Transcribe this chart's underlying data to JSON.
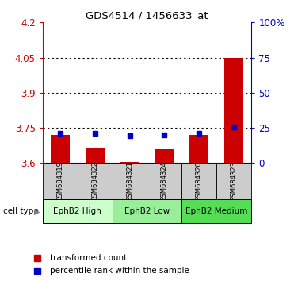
{
  "title": "GDS4514 / 1456633_at",
  "samples": [
    "GSM684319",
    "GSM684322",
    "GSM684321",
    "GSM684324",
    "GSM684320",
    "GSM684323"
  ],
  "red_values": [
    3.72,
    3.665,
    3.603,
    3.658,
    3.72,
    4.05
  ],
  "blue_values": [
    3.727,
    3.727,
    3.715,
    3.72,
    3.727,
    3.752
  ],
  "cell_types": [
    {
      "label": "EphB2 High",
      "start": 0,
      "end": 2,
      "color": "#ccffcc"
    },
    {
      "label": "EphB2 Low",
      "start": 2,
      "end": 4,
      "color": "#99ee99"
    },
    {
      "label": "EphB2 Medium",
      "start": 4,
      "end": 6,
      "color": "#55dd55"
    }
  ],
  "ymin": 3.6,
  "ymax": 4.2,
  "yticks_left": [
    3.6,
    3.75,
    3.9,
    4.05,
    4.2
  ],
  "yticks_right_vals": [
    0,
    25,
    50,
    75,
    100
  ],
  "yticks_right_labels": [
    "0",
    "25",
    "50",
    "75",
    "100%"
  ],
  "bar_color": "#cc0000",
  "dot_color": "#0000cc",
  "sample_bg": "#cccccc",
  "left_tick_color": "#cc0000",
  "right_tick_color": "#0000cc",
  "legend_red": "transformed count",
  "legend_blue": "percentile rank within the sample",
  "cell_type_label": "cell type"
}
